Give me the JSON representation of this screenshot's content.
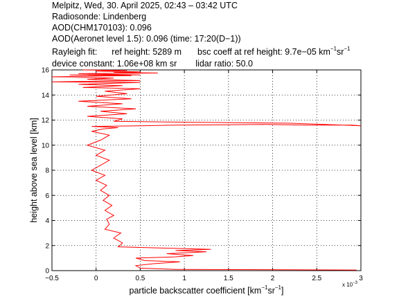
{
  "header": {
    "line1": "Melpitz, Wed, 30. April 2025, 02:43 – 03:42 UTC",
    "line2": "Radiosonde: Lindenberg",
    "line3": "AOD(CHM170103): 0.096",
    "line4": "AOD(Aeronet level 1.5): 0.096   (time: 17:20(D−1))",
    "rayleigh_label": "Rayleigh fit:",
    "ref_height": "ref height: 5289 m",
    "bsc_coeff_prefix": "bsc coeff at ref height: 9.7e−05 km",
    "device_constant": "device constant: 1.06e+08 km sr",
    "lidar_ratio": "lidar ratio: 50.0"
  },
  "units": {
    "km": "km",
    "sr": "sr",
    "neg1": "−1"
  },
  "chart_data": {
    "type": "line",
    "xlabel_prefix": "particle backscatter coefficient [km",
    "ylabel": "height above sea level [km]",
    "x_multiplier_label": "x 10",
    "x_multiplier_exp": "−3",
    "xlim": [
      -0.5,
      3.0
    ],
    "ylim": [
      0,
      16
    ],
    "grid": true,
    "xticks": [
      -0.5,
      0,
      0.5,
      1,
      1.5,
      2,
      2.5,
      3
    ],
    "xtick_labels": [
      "−0.5",
      "0",
      "0.5",
      "1",
      "1.5",
      "2",
      "2.5",
      "3"
    ],
    "yticks": [
      0,
      2,
      4,
      6,
      8,
      10,
      12,
      14,
      16
    ],
    "ytick_labels": [
      "0",
      "2",
      "4",
      "6",
      "8",
      "10",
      "12",
      "14",
      "16"
    ],
    "line_color": "#ff0000",
    "series": [
      {
        "x": [
          2.95,
          0.9,
          0.5,
          0.45,
          0.65,
          0.95,
          0.55,
          0.45,
          0.9,
          1.1,
          0.8,
          1.25,
          0.9,
          1.3,
          0.75,
          0.25,
          0.3,
          0.2,
          0.28,
          0.1,
          0.15,
          0.12,
          0.2,
          0.1,
          0.18,
          0.08,
          0.15,
          0.05,
          0.12,
          0.0,
          0.1,
          -0.05,
          0.05,
          0.15,
          0.0,
          0.1,
          -0.1,
          0.05,
          0.15,
          -0.05,
          0.08,
          0.25,
          -0.05,
          0.5,
          0.9,
          1.4,
          1.9,
          2.4,
          2.9,
          3.0,
          2.2,
          1.5,
          0.8,
          0.2,
          0.3,
          -0.1,
          0.35,
          0.05,
          0.45,
          -0.1,
          0.3,
          -0.2,
          0.4,
          0.0,
          0.35,
          0.1,
          0.5,
          -0.15,
          0.3,
          -0.2,
          0.5,
          -0.5,
          0.5,
          -0.1,
          0.2,
          -0.5,
          0.4,
          -0.3,
          0.5,
          -0.2,
          0.7,
          0.2,
          0.5,
          0.0,
          0.35,
          -0.15
        ],
        "y": [
          0.05,
          0.1,
          0.2,
          0.4,
          0.55,
          0.7,
          0.8,
          1.0,
          1.1,
          1.2,
          1.35,
          1.5,
          1.6,
          1.7,
          1.8,
          1.9,
          2.2,
          2.6,
          3.0,
          3.3,
          3.7,
          4.1,
          4.4,
          4.8,
          5.2,
          5.6,
          6.0,
          6.4,
          6.8,
          7.2,
          7.6,
          8.0,
          8.4,
          8.8,
          9.2,
          9.6,
          10.0,
          10.4,
          10.8,
          11.1,
          11.3,
          11.4,
          11.5,
          11.55,
          11.6,
          11.62,
          11.65,
          11.6,
          11.6,
          11.55,
          11.75,
          11.8,
          11.85,
          11.9,
          12.1,
          12.3,
          12.5,
          12.7,
          12.9,
          13.1,
          13.3,
          13.5,
          13.7,
          13.9,
          14.1,
          14.3,
          14.5,
          14.6,
          14.75,
          14.85,
          15.0,
          15.05,
          15.15,
          15.25,
          15.35,
          15.45,
          15.55,
          15.6,
          15.6,
          15.7,
          15.75,
          15.8,
          15.85,
          15.9,
          15.95,
          16.0
        ]
      }
    ]
  }
}
